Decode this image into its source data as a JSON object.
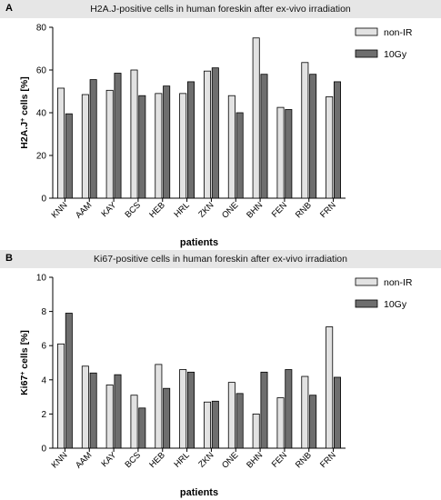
{
  "chart_data": [
    {
      "type": "bar",
      "panel_label": "A",
      "title": "H2A.J-positive cells in human foreskin after ex-vivo irradiation",
      "xlabel": "patients",
      "ylabel_main": "H2A.J",
      "ylabel_sup": "+",
      "ylabel_tail": " cells [%]",
      "ylim": [
        0,
        80
      ],
      "yticks": [
        0,
        20,
        40,
        60,
        80
      ],
      "grid": false,
      "legend_position": "top-right",
      "categories": [
        "KNN",
        "AAM",
        "KAY",
        "BCS",
        "HEB",
        "HRL",
        "ZKN",
        "ONE",
        "BHN",
        "FEN",
        "RNB",
        "FRN"
      ],
      "series": [
        {
          "name": "non-IR",
          "color": "#e2e2e2",
          "values": [
            51.5,
            48.5,
            50.5,
            60,
            49,
            49,
            59.5,
            48,
            75,
            42.5,
            63.5,
            47.5
          ]
        },
        {
          "name": "10Gy",
          "color": "#6e6e6e",
          "values": [
            39.5,
            55.5,
            58.5,
            48,
            52.5,
            54.5,
            61,
            40,
            58,
            41.5,
            58,
            54.5
          ]
        }
      ]
    },
    {
      "type": "bar",
      "panel_label": "B",
      "title": "Ki67-positive cells in human foreskin after ex-vivo irradiation",
      "xlabel": "patients",
      "ylabel_main": "Ki67",
      "ylabel_sup": "+",
      "ylabel_tail": " cells [%]",
      "ylim": [
        0,
        10
      ],
      "yticks": [
        0,
        2,
        4,
        6,
        8,
        10
      ],
      "grid": false,
      "legend_position": "top-right",
      "categories": [
        "KNN",
        "AAM",
        "KAY",
        "BCS",
        "HEB",
        "HRL",
        "ZKN",
        "ONE",
        "BHN",
        "FEN",
        "RNB",
        "FRN"
      ],
      "series": [
        {
          "name": "non-IR",
          "color": "#e2e2e2",
          "values": [
            6.1,
            4.8,
            3.7,
            3.1,
            4.9,
            4.6,
            2.7,
            3.85,
            2.0,
            2.95,
            4.2,
            7.1
          ]
        },
        {
          "name": "10Gy",
          "color": "#6e6e6e",
          "values": [
            7.9,
            4.4,
            4.3,
            2.35,
            3.5,
            4.45,
            2.75,
            3.2,
            4.45,
            4.6,
            3.1,
            4.15
          ]
        }
      ]
    }
  ]
}
